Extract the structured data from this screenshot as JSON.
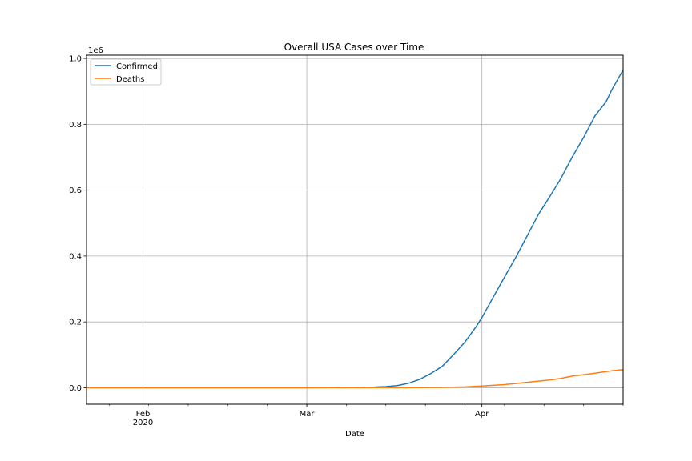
{
  "chart_data": {
    "type": "line",
    "title": "Overall USA Cases over Time",
    "xlabel": "Date",
    "ylabel": "",
    "y_offset_label": "1e6",
    "x_range": [
      "2020-01-22",
      "2020-04-26"
    ],
    "ylim": [
      -0.05,
      1.01
    ],
    "y_ticks": [
      0.0,
      0.2,
      0.4,
      0.6,
      0.8,
      1.0
    ],
    "y_tick_labels": [
      "0.0",
      "0.2",
      "0.4",
      "0.6",
      "0.8",
      "1.0"
    ],
    "x_ticks": [
      {
        "date": "2020-02-01",
        "label": "Feb",
        "sublabel": "2020"
      },
      {
        "date": "2020-03-01",
        "label": "Mar",
        "sublabel": ""
      },
      {
        "date": "2020-04-01",
        "label": "Apr",
        "sublabel": ""
      }
    ],
    "grid": true,
    "legend_position": "top-left",
    "series": [
      {
        "name": "Confirmed",
        "color": "#1f77b4",
        "points": [
          [
            "2020-01-22",
            0.0
          ],
          [
            "2020-02-15",
            0.0
          ],
          [
            "2020-03-01",
            0.0001
          ],
          [
            "2020-03-10",
            0.001
          ],
          [
            "2020-03-13",
            0.002
          ],
          [
            "2020-03-15",
            0.0035
          ],
          [
            "2020-03-17",
            0.0065
          ],
          [
            "2020-03-19",
            0.0137
          ],
          [
            "2020-03-21",
            0.0255
          ],
          [
            "2020-03-23",
            0.0435
          ],
          [
            "2020-03-25",
            0.0653
          ],
          [
            "2020-03-27",
            0.101
          ],
          [
            "2020-03-29",
            0.139
          ],
          [
            "2020-03-31",
            0.186
          ],
          [
            "2020-04-01",
            0.213
          ],
          [
            "2020-04-03",
            0.275
          ],
          [
            "2020-04-05",
            0.336
          ],
          [
            "2020-04-07",
            0.396
          ],
          [
            "2020-04-09",
            0.461
          ],
          [
            "2020-04-11",
            0.526
          ],
          [
            "2020-04-13",
            0.58
          ],
          [
            "2020-04-15",
            0.636
          ],
          [
            "2020-04-17",
            0.701
          ],
          [
            "2020-04-19",
            0.76
          ],
          [
            "2020-04-21",
            0.825
          ],
          [
            "2020-04-23",
            0.869
          ],
          [
            "2020-04-24",
            0.905
          ],
          [
            "2020-04-26",
            0.965
          ]
        ]
      },
      {
        "name": "Deaths",
        "color": "#ff7f0e",
        "points": [
          [
            "2020-01-22",
            0.0
          ],
          [
            "2020-03-15",
            0.0001
          ],
          [
            "2020-03-20",
            0.0003
          ],
          [
            "2020-03-25",
            0.0011
          ],
          [
            "2020-03-29",
            0.0025
          ],
          [
            "2020-04-01",
            0.0053
          ],
          [
            "2020-04-05",
            0.0096
          ],
          [
            "2020-04-07",
            0.0129
          ],
          [
            "2020-04-10",
            0.0185
          ],
          [
            "2020-04-13",
            0.0236
          ],
          [
            "2020-04-15",
            0.0283
          ],
          [
            "2020-04-17",
            0.0353
          ],
          [
            "2020-04-20",
            0.0418
          ],
          [
            "2020-04-22",
            0.0466
          ],
          [
            "2020-04-24",
            0.0514
          ],
          [
            "2020-04-26",
            0.0552
          ]
        ]
      }
    ]
  }
}
